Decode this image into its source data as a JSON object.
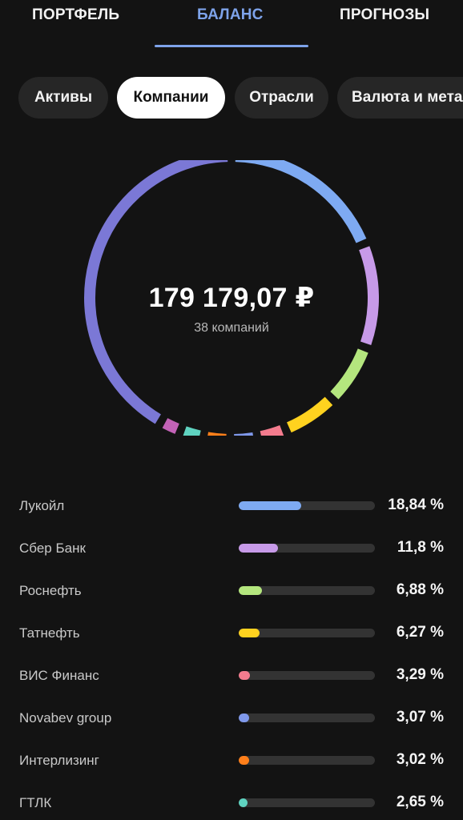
{
  "tabs": [
    {
      "label": "ПОРТФЕЛЬ",
      "active": false
    },
    {
      "label": "БАЛАНС",
      "active": true
    },
    {
      "label": "ПРОГНОЗЫ",
      "active": false
    }
  ],
  "chips": [
    {
      "label": "Активы",
      "selected": false
    },
    {
      "label": "Компании",
      "selected": true
    },
    {
      "label": "Отрасли",
      "selected": false
    },
    {
      "label": "Валюта и металлы",
      "selected": false
    }
  ],
  "summary": {
    "total": "179 179,07 ₽",
    "count": "38 компаний"
  },
  "colors": {
    "accent": "#7ea3ea",
    "background": "#131313",
    "track": "#333333",
    "others": "#7b78d6"
  },
  "chart_data": {
    "type": "pie",
    "style": "donut",
    "center_text": "179 179,07 ₽",
    "center_subtext": "38 компаний",
    "segments": [
      {
        "name": "Лукойл",
        "value": 18.84,
        "color": "#7eaaf2"
      },
      {
        "name": "Сбер Банк",
        "value": 11.8,
        "color": "#c79ae8"
      },
      {
        "name": "Роснефть",
        "value": 6.88,
        "color": "#b4e67e"
      },
      {
        "name": "Татнефть",
        "value": 6.27,
        "color": "#ffd21f"
      },
      {
        "name": "ВИС Финанс",
        "value": 3.29,
        "color": "#f47c8e"
      },
      {
        "name": "Novabev group",
        "value": 3.07,
        "color": "#7f98ea"
      },
      {
        "name": "Интерлизинг",
        "value": 3.02,
        "color": "#ff7f1a"
      },
      {
        "name": "ГТЛК",
        "value": 2.65,
        "color": "#5fd3c0"
      },
      {
        "name": "",
        "value": 2.4,
        "color": "#c262b6"
      },
      {
        "name": "",
        "value": 41.78,
        "color": "#7b78d6"
      }
    ]
  },
  "companies": [
    {
      "name": "Лукойл",
      "percent_text": "18,84 %",
      "percent": 18.84,
      "color": "#7eaaf2"
    },
    {
      "name": "Сбер Банк",
      "percent_text": "11,8 %",
      "percent": 11.8,
      "color": "#c79ae8"
    },
    {
      "name": "Роснефть",
      "percent_text": "6,88 %",
      "percent": 6.88,
      "color": "#b4e67e"
    },
    {
      "name": "Татнефть",
      "percent_text": "6,27 %",
      "percent": 6.27,
      "color": "#ffd21f"
    },
    {
      "name": "ВИС Финанс",
      "percent_text": "3,29 %",
      "percent": 3.29,
      "color": "#f47c8e"
    },
    {
      "name": "Novabev group",
      "percent_text": "3,07 %",
      "percent": 3.07,
      "color": "#7f98ea"
    },
    {
      "name": "Интерлизинг",
      "percent_text": "3,02 %",
      "percent": 3.02,
      "color": "#ff7f1a"
    },
    {
      "name": "ГТЛК",
      "percent_text": "2,65 %",
      "percent": 2.65,
      "color": "#5fd3c0"
    }
  ]
}
